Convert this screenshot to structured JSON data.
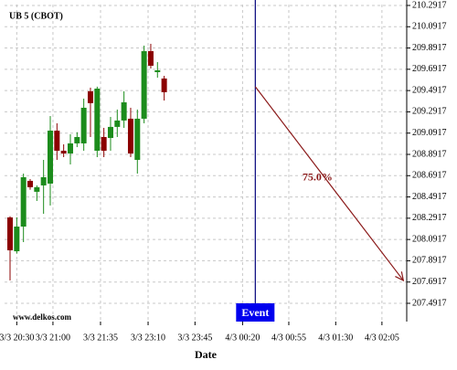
{
  "chart_data": {
    "type": "candlestick",
    "title": "UB 5 (CBOT)",
    "watermark": "www.delkos.com",
    "x_label": "Date",
    "up_color": "#1c8c1c",
    "down_color": "#8b0000",
    "grid": true,
    "xlim": [
      -0.82,
      59.2
    ],
    "ylim": [
      207.32,
      210.3
    ],
    "yticks": [
      210.2917,
      210.0917,
      209.8917,
      209.6917,
      209.4917,
      209.2917,
      209.0917,
      208.8917,
      208.6917,
      208.4917,
      208.2917,
      208.0917,
      207.8917,
      207.6917,
      207.4917
    ],
    "xticks": [
      {
        "value": 1,
        "label": "3/3 20:30"
      },
      {
        "value": 6.4,
        "label": "3/3 21:00"
      },
      {
        "value": 13.5,
        "label": "3/3 21:35"
      },
      {
        "value": 20.6,
        "label": "3/3 23:10"
      },
      {
        "value": 27.6,
        "label": "3/3 23:45"
      },
      {
        "value": 34.7,
        "label": "4/3 00:20"
      },
      {
        "value": 41.6,
        "label": "4/3 00:55"
      },
      {
        "value": 48.6,
        "label": "4/3 01:30"
      },
      {
        "value": 55.5,
        "label": "4/3 02:05"
      }
    ],
    "x": [
      0,
      1,
      2,
      3,
      4,
      5,
      6,
      7,
      8,
      9,
      10,
      11,
      12,
      13,
      14,
      15,
      16,
      17,
      18,
      19,
      20,
      21,
      22,
      23
    ],
    "open": [
      208.299,
      207.981,
      208.213,
      208.643,
      208.54,
      208.6,
      208.617,
      209.115,
      208.926,
      208.9,
      208.995,
      208.995,
      209.485,
      208.926,
      209.055,
      209.046,
      209.15,
      209.21,
      209.227,
      208.84,
      209.227,
      209.862,
      209.665,
      209.605
    ],
    "high": [
      208.31,
      208.3,
      208.711,
      208.66,
      208.6,
      208.84,
      209.252,
      209.184,
      208.986,
      209.081,
      209.1,
      209.416,
      209.519,
      209.528,
      209.141,
      209.244,
      209.313,
      209.485,
      209.33,
      209.313,
      209.914,
      209.931,
      209.759,
      209.63
    ],
    "low": [
      207.707,
      207.96,
      208.067,
      208.56,
      208.454,
      208.333,
      208.411,
      208.84,
      208.866,
      208.797,
      208.96,
      208.926,
      209.055,
      208.866,
      208.866,
      208.926,
      209.055,
      209.141,
      208.866,
      208.711,
      209.184,
      209.699,
      209.613,
      209.398
    ],
    "close": [
      207.99,
      208.213,
      208.677,
      208.583,
      208.583,
      208.677,
      209.115,
      208.926,
      208.9,
      208.995,
      209.055,
      209.33,
      209.373,
      209.51,
      208.926,
      209.15,
      209.21,
      209.381,
      208.9,
      209.227,
      209.862,
      209.725,
      209.682,
      209.476
    ],
    "event": {
      "label": "Event",
      "x": 36.6
    },
    "projection": {
      "label": "75.0%",
      "color": "#8b1a1a",
      "x": [
        36.6,
        58.7
      ],
      "values": [
        209.528,
        207.706
      ]
    }
  }
}
